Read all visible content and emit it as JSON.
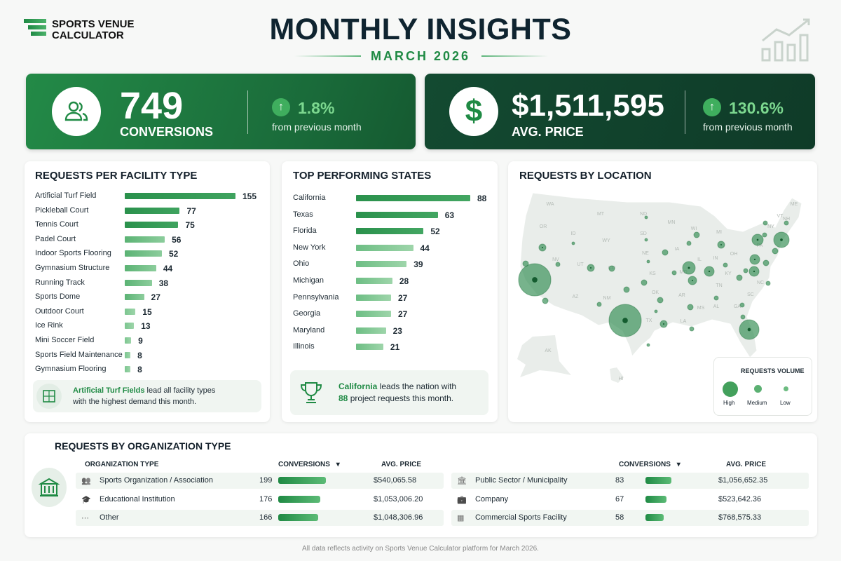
{
  "brand": {
    "line1": "SPORTS VENUE",
    "line2": "CALCULATOR"
  },
  "header": {
    "title": "MONTHLY INSIGHTS",
    "subtitle": "MARCH 2026",
    "icon": "chart-growth-icon"
  },
  "kpis": [
    {
      "value": "749",
      "label": "CONVERSIONS",
      "change": "1.8%",
      "change_text": "from previous month",
      "icon": "users-icon"
    },
    {
      "value": "$1,511,595",
      "label": "AVG. PRICE",
      "change": "130.6%",
      "change_text": "from previous month",
      "icon": "dollar-icon"
    }
  ],
  "facility": {
    "title": "REQUESTS PER FACILITY TYPE",
    "items": [
      {
        "label": "Artificial Turf Field",
        "value": 155
      },
      {
        "label": "Pickleball Court",
        "value": 77
      },
      {
        "label": "Tennis Court",
        "value": 75
      },
      {
        "label": "Padel Court",
        "value": 56
      },
      {
        "label": "Indoor Sports Flooring",
        "value": 52
      },
      {
        "label": "Gymnasium Structure",
        "value": 44
      },
      {
        "label": "Running Track",
        "value": 38
      },
      {
        "label": "Sports Dome",
        "value": 27
      },
      {
        "label": "Outdoor Court",
        "value": 15
      },
      {
        "label": "Ice Rink",
        "value": 13
      },
      {
        "label": "Mini Soccer Field",
        "value": 9
      },
      {
        "label": "Sports Field Maintenance",
        "value": 8
      },
      {
        "label": "Gymnasium Flooring",
        "value": 8
      }
    ],
    "note_bold": "Artificial Turf Fields",
    "note_rest": " lead all facility types",
    "note_line2": "with the highest demand this month."
  },
  "states": {
    "title": "TOP PERFORMING STATES",
    "items": [
      {
        "label": "California",
        "value": 88
      },
      {
        "label": "Texas",
        "value": 63
      },
      {
        "label": "Florida",
        "value": 52
      },
      {
        "label": "New York",
        "value": 44
      },
      {
        "label": "Ohio",
        "value": 39
      },
      {
        "label": "Michigan",
        "value": 28
      },
      {
        "label": "Pennsylvania",
        "value": 27
      },
      {
        "label": "Georgia",
        "value": 27
      },
      {
        "label": "Maryland",
        "value": 23
      },
      {
        "label": "Illinois",
        "value": 21
      }
    ],
    "note_bold": "California",
    "note_rest": " leads the nation with",
    "note_bold2": "88",
    "note_line2": " project requests this month."
  },
  "map": {
    "title": "REQUESTS BY LOCATION",
    "state_labels": [
      "WA",
      "MT",
      "ND",
      "MN",
      "OR",
      "ID",
      "WY",
      "SD",
      "WI",
      "MI",
      "NY",
      "ME",
      "VT",
      "NH",
      "PA",
      "NE",
      "IA",
      "IL",
      "IN",
      "OH",
      "NV",
      "UT",
      "CO",
      "KS",
      "MO",
      "KY",
      "AZ",
      "NM",
      "OK",
      "AR",
      "TN",
      "NC",
      "SC",
      "MS",
      "AL",
      "GA",
      "TX",
      "LA",
      "AK",
      "HI"
    ],
    "legend": {
      "title": "REQUESTS VOLUME",
      "high": "High",
      "medium": "Medium",
      "low": "Low"
    },
    "color": "#2e8b4f"
  },
  "org": {
    "title": "REQUESTS BY ORGANIZATION TYPE",
    "col_type": "ORGANIZATION TYPE",
    "col_conv": "CONVERSIONS",
    "col_price": "AVG. PRICE",
    "left": [
      {
        "icon": "users-icon",
        "label": "Sports Organization / Association",
        "conversions": 199,
        "price": "$540,065.58"
      },
      {
        "icon": "graduation-cap-icon",
        "label": "Educational Institution",
        "conversions": 176,
        "price": "$1,053,006.20"
      },
      {
        "icon": "more-icon",
        "label": "Other",
        "conversions": 166,
        "price": "$1,048,306.96"
      }
    ],
    "right": [
      {
        "icon": "government-building-icon",
        "label": "Public Sector / Municipality",
        "conversions": 83,
        "price": "$1,056,652.35"
      },
      {
        "icon": "briefcase-icon",
        "label": "Company",
        "conversions": 67,
        "price": "$523,642.36"
      },
      {
        "icon": "stadium-icon",
        "label": "Commercial Sports Facility",
        "conversions": 58,
        "price": "$768,575.33"
      }
    ]
  },
  "footer": "All data reflects activity on Sports Venue Calculator platform for March 2026."
}
